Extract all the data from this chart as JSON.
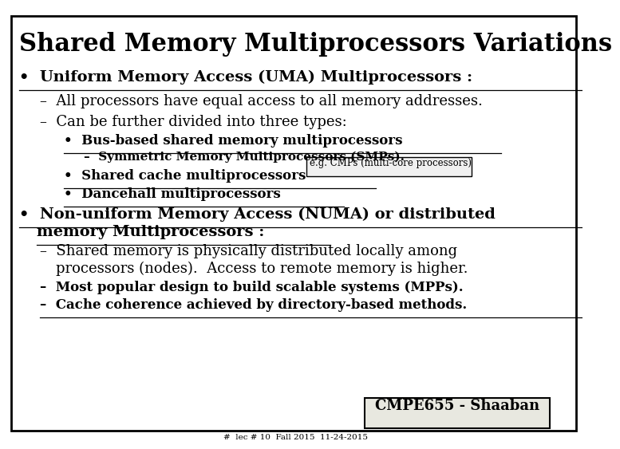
{
  "title": "Shared Memory Multiprocessors Variations",
  "bg_color": "#ffffff",
  "border_color": "#000000",
  "text_color": "#000000",
  "title_fontsize": 22,
  "footer_text": "CMPE655 - Shaaban",
  "footer_sub": "#  lec # 10  Fall 2015  11-24-2015"
}
